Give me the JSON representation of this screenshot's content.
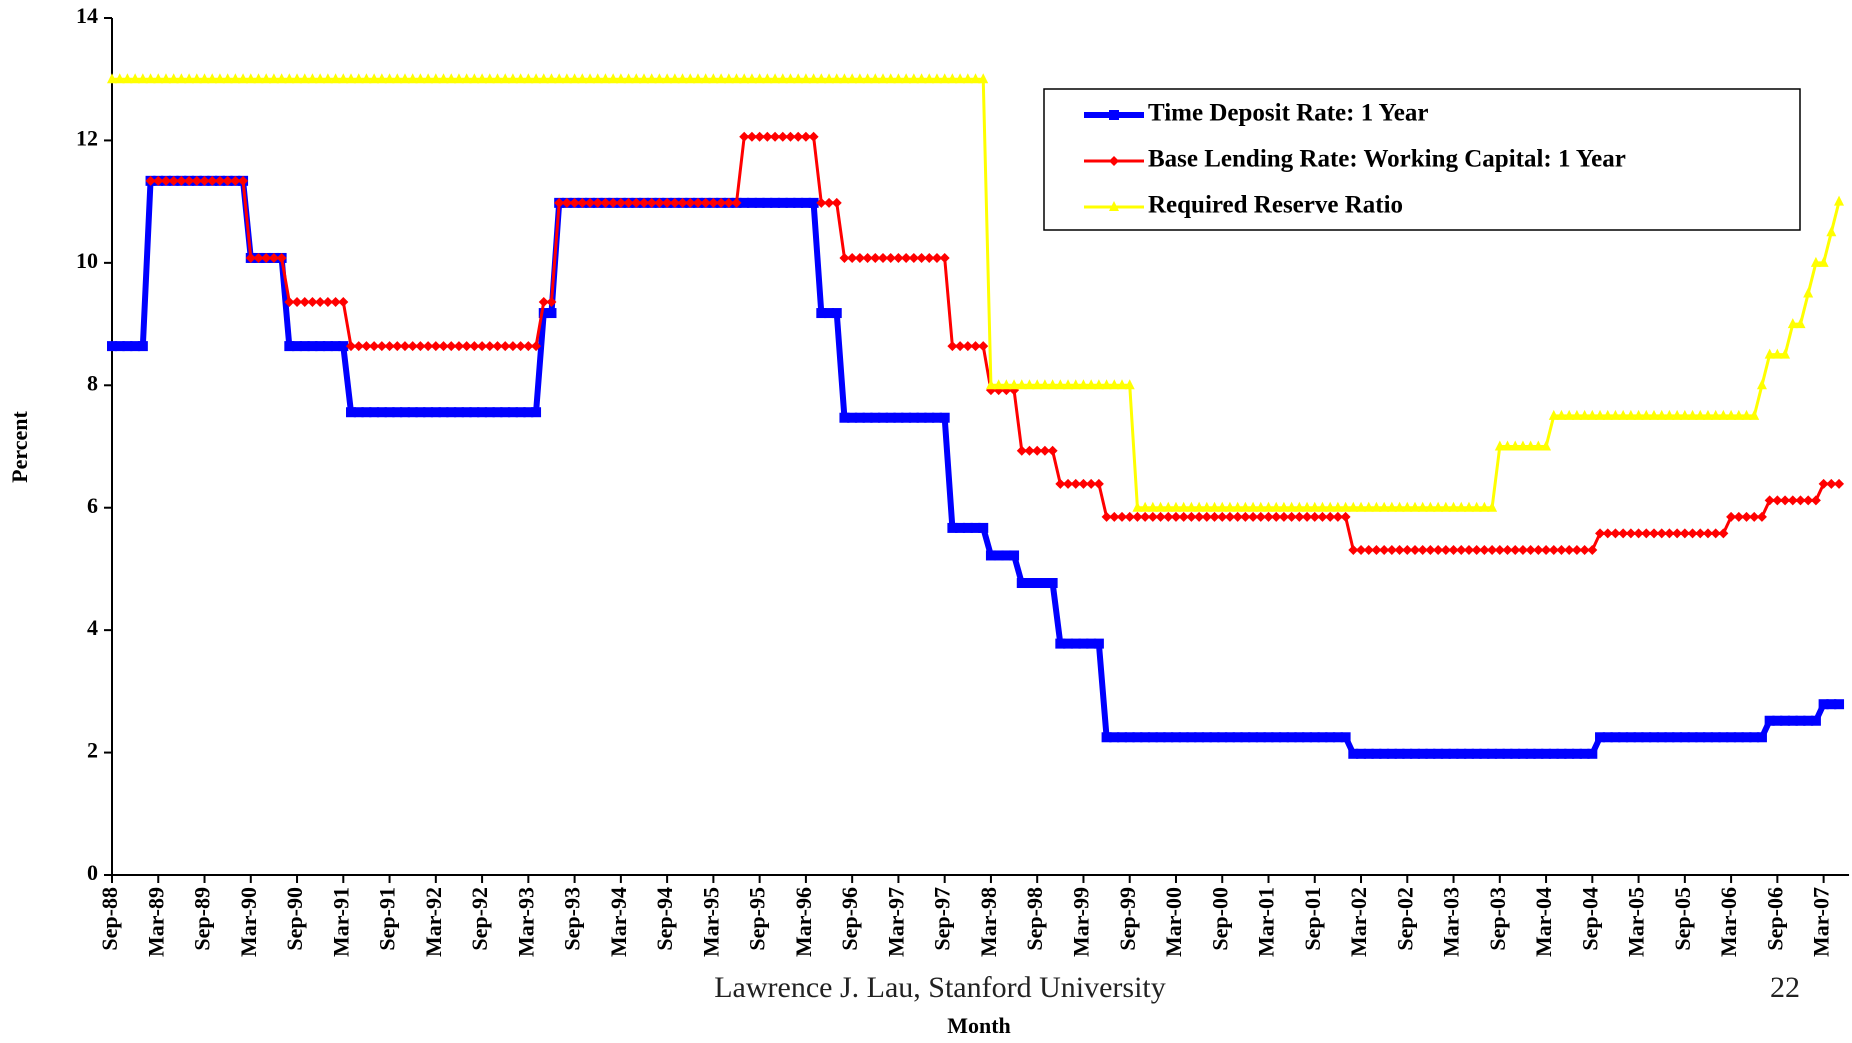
{
  "chart_data": {
    "type": "line",
    "x_label": "Month",
    "y_label": "Percent",
    "footer": "Lawrence J. Lau, Stanford University",
    "page_number": "22",
    "ylim": [
      0,
      14
    ],
    "yticks": [
      0,
      2,
      4,
      6,
      8,
      10,
      12,
      14
    ],
    "legend": "top-right",
    "categories": [
      "Sep-88",
      null,
      null,
      null,
      null,
      null,
      "Mar-89",
      null,
      null,
      null,
      null,
      null,
      "Sep-89",
      null,
      null,
      null,
      null,
      null,
      "Mar-90",
      null,
      null,
      null,
      null,
      null,
      "Sep-90",
      null,
      null,
      null,
      null,
      null,
      "Mar-91",
      null,
      null,
      null,
      null,
      null,
      "Sep-91",
      null,
      null,
      null,
      null,
      null,
      "Mar-92",
      null,
      null,
      null,
      null,
      null,
      "Sep-92",
      null,
      null,
      null,
      null,
      null,
      "Mar-93",
      null,
      null,
      null,
      null,
      null,
      "Sep-93",
      null,
      null,
      null,
      null,
      null,
      "Mar-94",
      null,
      null,
      null,
      null,
      null,
      "Sep-94",
      null,
      null,
      null,
      null,
      null,
      "Mar-95",
      null,
      null,
      null,
      null,
      null,
      "Sep-95",
      null,
      null,
      null,
      null,
      null,
      "Mar-96",
      null,
      null,
      null,
      null,
      null,
      "Sep-96",
      null,
      null,
      null,
      null,
      null,
      "Mar-97",
      null,
      null,
      null,
      null,
      null,
      "Sep-97",
      null,
      null,
      null,
      null,
      null,
      "Mar-98",
      null,
      null,
      null,
      null,
      null,
      "Sep-98",
      null,
      null,
      null,
      null,
      null,
      "Mar-99",
      null,
      null,
      null,
      null,
      null,
      "Sep-99",
      null,
      null,
      null,
      null,
      null,
      "Mar-00",
      null,
      null,
      null,
      null,
      null,
      "Sep-00",
      null,
      null,
      null,
      null,
      null,
      "Mar-01",
      null,
      null,
      null,
      null,
      null,
      "Sep-01",
      null,
      null,
      null,
      null,
      null,
      "Mar-02",
      null,
      null,
      null,
      null,
      null,
      "Sep-02",
      null,
      null,
      null,
      null,
      null,
      "Mar-03",
      null,
      null,
      null,
      null,
      null,
      "Sep-03",
      null,
      null,
      null,
      null,
      null,
      "Mar-04",
      null,
      null,
      null,
      null,
      null,
      "Sep-04",
      null,
      null,
      null,
      null,
      null,
      "Mar-05",
      null,
      null,
      null,
      null,
      null,
      "Sep-05",
      null,
      null,
      null,
      null,
      null,
      "Mar-06",
      null,
      null,
      null,
      null,
      null,
      "Sep-06",
      null,
      null,
      null,
      null,
      null,
      "Mar-07",
      null,
      null
    ],
    "series": [
      {
        "name": "Time Deposit Rate: 1 Year",
        "color": "#0000ff",
        "marker": "square",
        "values": [
          8.64,
          8.64,
          8.64,
          8.64,
          8.64,
          11.34,
          11.34,
          11.34,
          11.34,
          11.34,
          11.34,
          11.34,
          11.34,
          11.34,
          11.34,
          11.34,
          11.34,
          11.34,
          10.08,
          10.08,
          10.08,
          10.08,
          10.08,
          8.64,
          8.64,
          8.64,
          8.64,
          8.64,
          8.64,
          8.64,
          8.64,
          7.56,
          7.56,
          7.56,
          7.56,
          7.56,
          7.56,
          7.56,
          7.56,
          7.56,
          7.56,
          7.56,
          7.56,
          7.56,
          7.56,
          7.56,
          7.56,
          7.56,
          7.56,
          7.56,
          7.56,
          7.56,
          7.56,
          7.56,
          7.56,
          7.56,
          9.18,
          9.18,
          10.98,
          10.98,
          10.98,
          10.98,
          10.98,
          10.98,
          10.98,
          10.98,
          10.98,
          10.98,
          10.98,
          10.98,
          10.98,
          10.98,
          10.98,
          10.98,
          10.98,
          10.98,
          10.98,
          10.98,
          10.98,
          10.98,
          10.98,
          10.98,
          10.98,
          10.98,
          10.98,
          10.98,
          10.98,
          10.98,
          10.98,
          10.98,
          10.98,
          10.98,
          9.18,
          9.18,
          9.18,
          7.47,
          7.47,
          7.47,
          7.47,
          7.47,
          7.47,
          7.47,
          7.47,
          7.47,
          7.47,
          7.47,
          7.47,
          7.47,
          7.47,
          5.67,
          5.67,
          5.67,
          5.67,
          5.67,
          5.22,
          5.22,
          5.22,
          5.22,
          4.77,
          4.77,
          4.77,
          4.77,
          4.77,
          3.78,
          3.78,
          3.78,
          3.78,
          3.78,
          3.78,
          2.25,
          2.25,
          2.25,
          2.25,
          2.25,
          2.25,
          2.25,
          2.25,
          2.25,
          2.25,
          2.25,
          2.25,
          2.25,
          2.25,
          2.25,
          2.25,
          2.25,
          2.25,
          2.25,
          2.25,
          2.25,
          2.25,
          2.25,
          2.25,
          2.25,
          2.25,
          2.25,
          2.25,
          2.25,
          2.25,
          2.25,
          2.25,
          1.98,
          1.98,
          1.98,
          1.98,
          1.98,
          1.98,
          1.98,
          1.98,
          1.98,
          1.98,
          1.98,
          1.98,
          1.98,
          1.98,
          1.98,
          1.98,
          1.98,
          1.98,
          1.98,
          1.98,
          1.98,
          1.98,
          1.98,
          1.98,
          1.98,
          1.98,
          1.98,
          1.98,
          1.98,
          1.98,
          1.98,
          1.98,
          2.25,
          2.25,
          2.25,
          2.25,
          2.25,
          2.25,
          2.25,
          2.25,
          2.25,
          2.25,
          2.25,
          2.25,
          2.25,
          2.25,
          2.25,
          2.25,
          2.25,
          2.25,
          2.25,
          2.25,
          2.25,
          2.25,
          2.52,
          2.52,
          2.52,
          2.52,
          2.52,
          2.52,
          2.52,
          2.79,
          2.79,
          2.79
        ]
      },
      {
        "name": "Base Lending Rate: Working Capital: 1 Year",
        "color": "#ff0000",
        "marker": "diamond",
        "values": [
          null,
          null,
          null,
          null,
          null,
          11.34,
          11.34,
          11.34,
          11.34,
          11.34,
          11.34,
          11.34,
          11.34,
          11.34,
          11.34,
          11.34,
          11.34,
          11.34,
          10.08,
          10.08,
          10.08,
          10.08,
          10.08,
          9.36,
          9.36,
          9.36,
          9.36,
          9.36,
          9.36,
          9.36,
          9.36,
          8.64,
          8.64,
          8.64,
          8.64,
          8.64,
          8.64,
          8.64,
          8.64,
          8.64,
          8.64,
          8.64,
          8.64,
          8.64,
          8.64,
          8.64,
          8.64,
          8.64,
          8.64,
          8.64,
          8.64,
          8.64,
          8.64,
          8.64,
          8.64,
          8.64,
          9.36,
          9.36,
          10.98,
          10.98,
          10.98,
          10.98,
          10.98,
          10.98,
          10.98,
          10.98,
          10.98,
          10.98,
          10.98,
          10.98,
          10.98,
          10.98,
          10.98,
          10.98,
          10.98,
          10.98,
          10.98,
          10.98,
          10.98,
          10.98,
          10.98,
          10.98,
          12.06,
          12.06,
          12.06,
          12.06,
          12.06,
          12.06,
          12.06,
          12.06,
          12.06,
          12.06,
          10.98,
          10.98,
          10.98,
          10.08,
          10.08,
          10.08,
          10.08,
          10.08,
          10.08,
          10.08,
          10.08,
          10.08,
          10.08,
          10.08,
          10.08,
          10.08,
          10.08,
          8.64,
          8.64,
          8.64,
          8.64,
          8.64,
          7.92,
          7.92,
          7.92,
          7.92,
          6.93,
          6.93,
          6.93,
          6.93,
          6.93,
          6.39,
          6.39,
          6.39,
          6.39,
          6.39,
          6.39,
          5.85,
          5.85,
          5.85,
          5.85,
          5.85,
          5.85,
          5.85,
          5.85,
          5.85,
          5.85,
          5.85,
          5.85,
          5.85,
          5.85,
          5.85,
          5.85,
          5.85,
          5.85,
          5.85,
          5.85,
          5.85,
          5.85,
          5.85,
          5.85,
          5.85,
          5.85,
          5.85,
          5.85,
          5.85,
          5.85,
          5.85,
          5.85,
          5.31,
          5.31,
          5.31,
          5.31,
          5.31,
          5.31,
          5.31,
          5.31,
          5.31,
          5.31,
          5.31,
          5.31,
          5.31,
          5.31,
          5.31,
          5.31,
          5.31,
          5.31,
          5.31,
          5.31,
          5.31,
          5.31,
          5.31,
          5.31,
          5.31,
          5.31,
          5.31,
          5.31,
          5.31,
          5.31,
          5.31,
          5.31,
          5.58,
          5.58,
          5.58,
          5.58,
          5.58,
          5.58,
          5.58,
          5.58,
          5.58,
          5.58,
          5.58,
          5.58,
          5.58,
          5.58,
          5.58,
          5.58,
          5.58,
          5.85,
          5.85,
          5.85,
          5.85,
          5.85,
          6.12,
          6.12,
          6.12,
          6.12,
          6.12,
          6.12,
          6.12,
          6.39,
          6.39,
          6.39
        ]
      },
      {
        "name": "Required Reserve Ratio",
        "color": "#ffff00",
        "marker": "triangle",
        "values": [
          13,
          13,
          13,
          13,
          13,
          13,
          13,
          13,
          13,
          13,
          13,
          13,
          13,
          13,
          13,
          13,
          13,
          13,
          13,
          13,
          13,
          13,
          13,
          13,
          13,
          13,
          13,
          13,
          13,
          13,
          13,
          13,
          13,
          13,
          13,
          13,
          13,
          13,
          13,
          13,
          13,
          13,
          13,
          13,
          13,
          13,
          13,
          13,
          13,
          13,
          13,
          13,
          13,
          13,
          13,
          13,
          13,
          13,
          13,
          13,
          13,
          13,
          13,
          13,
          13,
          13,
          13,
          13,
          13,
          13,
          13,
          13,
          13,
          13,
          13,
          13,
          13,
          13,
          13,
          13,
          13,
          13,
          13,
          13,
          13,
          13,
          13,
          13,
          13,
          13,
          13,
          13,
          13,
          13,
          13,
          13,
          13,
          13,
          13,
          13,
          13,
          13,
          13,
          13,
          13,
          13,
          13,
          13,
          13,
          13,
          13,
          13,
          13,
          13,
          8,
          8,
          8,
          8,
          8,
          8,
          8,
          8,
          8,
          8,
          8,
          8,
          8,
          8,
          8,
          8,
          8,
          8,
          8,
          6,
          6,
          6,
          6,
          6,
          6,
          6,
          6,
          6,
          6,
          6,
          6,
          6,
          6,
          6,
          6,
          6,
          6,
          6,
          6,
          6,
          6,
          6,
          6,
          6,
          6,
          6,
          6,
          6,
          6,
          6,
          6,
          6,
          6,
          6,
          6,
          6,
          6,
          6,
          6,
          6,
          6,
          6,
          6,
          6,
          6,
          6,
          7,
          7,
          7,
          7,
          7,
          7,
          7,
          7.5,
          7.5,
          7.5,
          7.5,
          7.5,
          7.5,
          7.5,
          7.5,
          7.5,
          7.5,
          7.5,
          7.5,
          7.5,
          7.5,
          7.5,
          7.5,
          7.5,
          7.5,
          7.5,
          7.5,
          7.5,
          7.5,
          7.5,
          7.5,
          7.5,
          7.5,
          7.5,
          8,
          8.5,
          8.5,
          8.5,
          9,
          9,
          9.5,
          10,
          10,
          10.5,
          11
        ]
      }
    ]
  }
}
